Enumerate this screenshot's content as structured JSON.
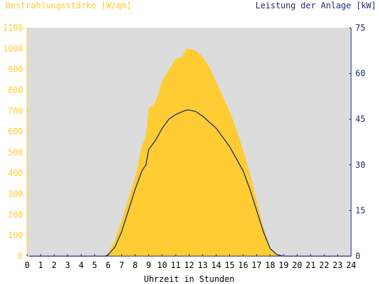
{
  "chart_data": {
    "type": "area",
    "y1label": "Bestrahlungsstärke [W/qm]",
    "y2label": "Leistung der Anlage [kW]",
    "xlabel": "Uhrzeit in Stunden",
    "xlim": [
      0,
      24
    ],
    "y1lim": [
      0,
      1100
    ],
    "y2lim": [
      0,
      75
    ],
    "xticks": [
      "0",
      "1",
      "2",
      "3",
      "4",
      "5",
      "6",
      "7",
      "8",
      "9",
      "10",
      "11",
      "12",
      "13",
      "14",
      "15",
      "16",
      "17",
      "18",
      "19",
      "20",
      "21",
      "22",
      "23",
      "24"
    ],
    "y1ticks": [
      "0",
      "100",
      "200",
      "300",
      "400",
      "500",
      "600",
      "700",
      "800",
      "900",
      "1000",
      "1100"
    ],
    "y2ticks": [
      "0",
      "15",
      "30",
      "45",
      "60",
      "75"
    ],
    "colors": {
      "plot_bg": "#dcdcdc",
      "irradiance": "#ffcc33",
      "power": "#1c2d6b",
      "left_axis": "#ffcc33",
      "right_axis": "#1c2d6b"
    },
    "series": [
      {
        "name": "Bestrahlungsstärke",
        "axis": "left",
        "x": [
          5.8,
          6.0,
          6.5,
          7.0,
          7.5,
          8.0,
          8.5,
          8.8,
          9.0,
          9.5,
          10.0,
          10.5,
          11.0,
          11.5,
          11.8,
          12.0,
          12.5,
          13.0,
          13.5,
          14.0,
          14.5,
          15.0,
          15.5,
          16.0,
          16.5,
          17.0,
          17.5,
          18.0,
          18.5,
          19.0,
          19.2
        ],
        "values": [
          0,
          10,
          80,
          170,
          280,
          380,
          530,
          580,
          710,
          740,
          840,
          900,
          950,
          960,
          1000,
          1000,
          990,
          960,
          910,
          840,
          770,
          700,
          610,
          510,
          400,
          270,
          140,
          40,
          10,
          0,
          0
        ]
      },
      {
        "name": "Leistung der Anlage",
        "axis": "right",
        "x": [
          5.8,
          6.0,
          6.5,
          7.0,
          7.5,
          8.0,
          8.5,
          8.8,
          9.0,
          9.5,
          10.0,
          10.5,
          11.0,
          11.5,
          11.8,
          12.0,
          12.5,
          13.0,
          13.5,
          14.0,
          14.5,
          15.0,
          15.5,
          16.0,
          16.5,
          17.0,
          17.5,
          18.0,
          18.5,
          19.0,
          19.2
        ],
        "values": [
          0,
          0.5,
          3,
          8,
          15,
          22,
          28,
          30,
          35,
          38,
          42,
          45,
          46.5,
          47.5,
          48,
          48,
          47.5,
          46,
          44,
          42,
          39,
          36,
          32,
          28,
          22,
          15,
          8,
          2.5,
          0.5,
          0,
          0
        ]
      }
    ]
  }
}
